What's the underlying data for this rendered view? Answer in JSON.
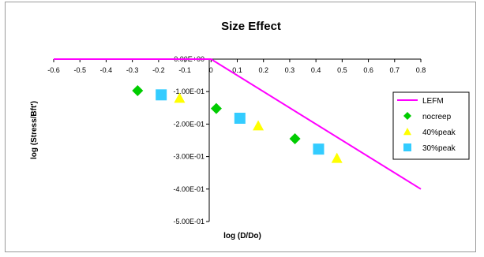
{
  "chart_data": {
    "type": "scatter",
    "title": "Size Effect",
    "xlabel": "log (D/Do)",
    "ylabel": "log (Stress/Bft')",
    "xlim": [
      -0.6,
      0.8
    ],
    "ylim": [
      -0.5,
      0.0
    ],
    "x_ticks": [
      -0.6,
      -0.5,
      -0.4,
      -0.3,
      -0.2,
      -0.1,
      0,
      0.1,
      0.2,
      0.3,
      0.4,
      0.5,
      0.6,
      0.7,
      0.8
    ],
    "x_tick_labels": [
      "-0.6",
      "-0.5",
      "-0.4",
      "-0.3",
      "-0.2",
      "-0.1",
      "0",
      "0.1",
      "0.2",
      "0.3",
      "0.4",
      "0.5",
      "0.6",
      "0.7",
      "0.8"
    ],
    "y_ticks": [
      0,
      -0.1,
      -0.2,
      -0.3,
      -0.4,
      -0.5
    ],
    "y_tick_labels": [
      "0.00E+00",
      "-1.00E-01",
      "-2.00E-01",
      "-3.00E-01",
      "-4.00E-01",
      "-5.00E-01"
    ],
    "grid": false,
    "legend_position": "right",
    "series": [
      {
        "name": "LEFM",
        "kind": "line",
        "color": "#FF00FF",
        "x": [
          -0.6,
          0.0,
          0.8
        ],
        "y": [
          0.0,
          0.0,
          -0.4
        ]
      },
      {
        "name": "nocreep",
        "kind": "marker",
        "marker": "diamond",
        "color": "#00CC00",
        "x": [
          -0.28,
          0.02,
          0.32
        ],
        "y": [
          -0.097,
          -0.152,
          -0.245
        ]
      },
      {
        "name": "40%peak",
        "kind": "marker",
        "marker": "triangle",
        "color": "#FFFF00",
        "x": [
          -0.12,
          0.18,
          0.48
        ],
        "y": [
          -0.12,
          -0.205,
          -0.305
        ]
      },
      {
        "name": "30%peak",
        "kind": "marker",
        "marker": "square",
        "color": "#33CCFF",
        "x": [
          -0.19,
          0.11,
          0.41
        ],
        "y": [
          -0.11,
          -0.182,
          -0.277
        ]
      }
    ]
  }
}
